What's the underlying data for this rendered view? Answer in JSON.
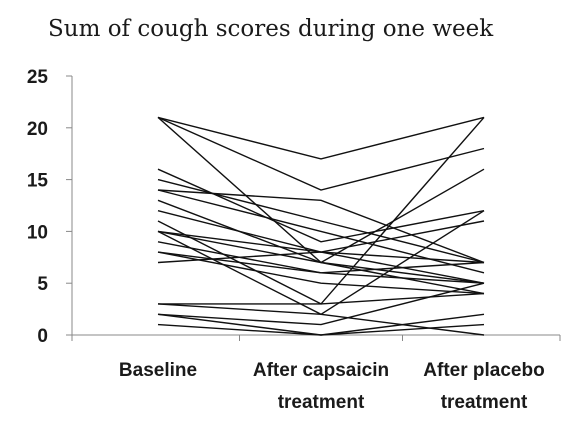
{
  "chart_data": {
    "type": "line",
    "title": "Sum of cough scores during one week",
    "xlabel": "",
    "ylabel": "",
    "categories": [
      [
        "Baseline"
      ],
      [
        "After capsaicin",
        "treatment"
      ],
      [
        "After placebo",
        "treatment"
      ]
    ],
    "yticks": [
      "0",
      "5",
      "10",
      "15",
      "20",
      "25"
    ],
    "ylim": [
      0,
      25
    ],
    "grid": false,
    "legend": "none",
    "line_color": "#111111",
    "series": [
      {
        "values": [
          21,
          17,
          21
        ]
      },
      {
        "values": [
          21,
          14,
          18
        ]
      },
      {
        "values": [
          21,
          7,
          5
        ]
      },
      {
        "values": [
          16,
          9,
          12
        ]
      },
      {
        "values": [
          15,
          11,
          7
        ]
      },
      {
        "values": [
          14,
          13,
          7
        ]
      },
      {
        "values": [
          14,
          10,
          6
        ]
      },
      {
        "values": [
          13,
          7,
          16
        ]
      },
      {
        "values": [
          12,
          8,
          5
        ]
      },
      {
        "values": [
          11,
          3,
          21
        ]
      },
      {
        "values": [
          10,
          8,
          11
        ]
      },
      {
        "values": [
          10,
          7,
          4
        ]
      },
      {
        "values": [
          10,
          2,
          0
        ]
      },
      {
        "values": [
          9,
          6,
          7
        ]
      },
      {
        "values": [
          8,
          6,
          5
        ]
      },
      {
        "values": [
          8,
          5,
          4
        ]
      },
      {
        "values": [
          7,
          8,
          7
        ]
      },
      {
        "values": [
          3,
          3,
          4
        ]
      },
      {
        "values": [
          3,
          2,
          12
        ]
      },
      {
        "values": [
          2,
          0,
          2
        ]
      },
      {
        "values": [
          2,
          1,
          5
        ]
      },
      {
        "values": [
          1,
          0,
          1
        ]
      }
    ]
  }
}
